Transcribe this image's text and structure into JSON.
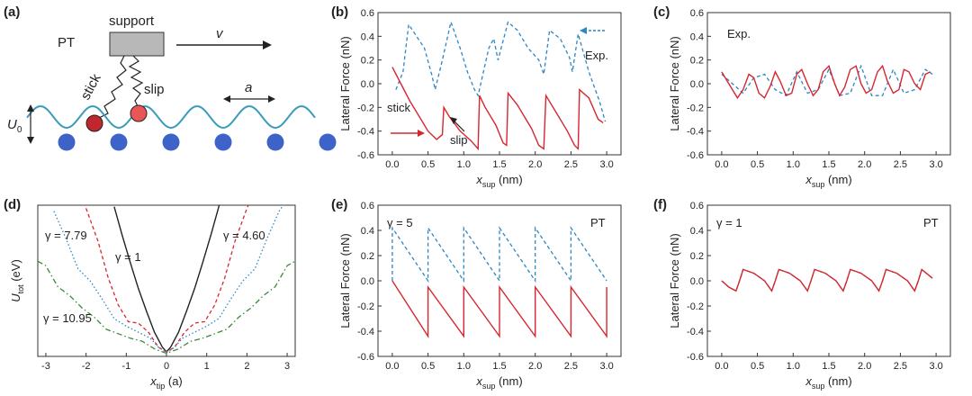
{
  "colors": {
    "exp": "#2f86c2",
    "sim": "#d7262e",
    "black": "#222222",
    "green": "#3a8a3a",
    "atom": "#3e63c8",
    "wave": "#3a9cba",
    "support": "#b8b8b8"
  },
  "panel_labels": {
    "a": "(a)",
    "b": "(b)",
    "c": "(c)",
    "d": "(d)",
    "e": "(e)",
    "f": "(f)"
  },
  "schematic": {
    "model": "PT",
    "support": "support",
    "velocity": "v",
    "stick": "stick",
    "slip": "slip",
    "lattice": "a",
    "barrier_base": "U",
    "barrier_sub": "0"
  },
  "chart_data": [
    {
      "id": "b",
      "type": "line",
      "ylabel": "Lateral Force (nN)",
      "xlabel_base": "x",
      "xlabel_sub": "sup",
      "xlabel_unit": " (nm)",
      "xlim": [
        -0.2,
        3.2
      ],
      "ylim": [
        -0.6,
        0.6
      ],
      "xticks": [
        "0.0",
        "0.5",
        "1.0",
        "1.5",
        "2.0",
        "2.5",
        "3.0"
      ],
      "yticks": [
        "-0.6",
        "-0.4",
        "-0.2",
        "0.0",
        "0.2",
        "0.4",
        "0.6"
      ],
      "annotations": {
        "exp": "Exp.",
        "stick": "stick",
        "slip": "slip"
      },
      "series": [
        {
          "style": "dashed",
          "color": "exp",
          "x": [
            0.05,
            0.15,
            0.23,
            0.45,
            0.55,
            0.6,
            0.7,
            0.82,
            0.95,
            1.05,
            1.15,
            1.2,
            1.35,
            1.42,
            1.48,
            1.62,
            1.75,
            1.9,
            2.05,
            2.12,
            2.2,
            2.35,
            2.48,
            2.52,
            2.6,
            2.75,
            2.9,
            2.98
          ],
          "y": [
            -0.05,
            0.1,
            0.5,
            0.3,
            0.08,
            -0.05,
            0.2,
            0.52,
            0.3,
            0.1,
            -0.05,
            -0.1,
            0.3,
            0.38,
            0.2,
            0.52,
            0.45,
            0.3,
            0.2,
            0.08,
            0.45,
            0.38,
            0.22,
            0.1,
            0.42,
            0.1,
            -0.15,
            -0.32
          ]
        },
        {
          "style": "solid",
          "color": "sim",
          "x": [
            0.0,
            0.12,
            0.25,
            0.38,
            0.5,
            0.62,
            0.7,
            0.72,
            0.8,
            0.95,
            1.1,
            1.2,
            1.22,
            1.3,
            1.45,
            1.55,
            1.6,
            1.62,
            1.75,
            1.95,
            2.05,
            2.12,
            2.15,
            2.3,
            2.45,
            2.55,
            2.6,
            2.62,
            2.75,
            2.88,
            2.95
          ],
          "y": [
            0.14,
            0.0,
            -0.15,
            -0.28,
            -0.4,
            -0.47,
            -0.43,
            -0.2,
            -0.28,
            -0.4,
            -0.48,
            -0.55,
            -0.1,
            -0.2,
            -0.35,
            -0.5,
            -0.52,
            -0.08,
            -0.18,
            -0.38,
            -0.52,
            -0.55,
            -0.1,
            -0.25,
            -0.4,
            -0.52,
            -0.55,
            -0.05,
            -0.12,
            -0.3,
            -0.33
          ]
        }
      ]
    },
    {
      "id": "c",
      "type": "line",
      "ylabel": "Lateral Force (nN)",
      "xlabel_base": "x",
      "xlabel_sub": "sup",
      "xlabel_unit": " (nm)",
      "xlim": [
        -0.2,
        3.2
      ],
      "ylim": [
        -0.6,
        0.6
      ],
      "xticks": [
        "0.0",
        "0.5",
        "1.0",
        "1.5",
        "2.0",
        "2.5",
        "3.0"
      ],
      "yticks": [
        "-0.6",
        "-0.4",
        "-0.2",
        "0.0",
        "0.2",
        "0.4",
        "0.6"
      ],
      "annotations": {
        "exp": "Exp."
      },
      "series": [
        {
          "style": "dashed",
          "color": "exp",
          "x": [
            0.0,
            0.15,
            0.3,
            0.45,
            0.6,
            0.75,
            0.9,
            1.05,
            1.2,
            1.35,
            1.5,
            1.65,
            1.8,
            1.95,
            2.1,
            2.25,
            2.4,
            2.55,
            2.7,
            2.85,
            2.95
          ],
          "y": [
            0.08,
            0.0,
            -0.08,
            0.05,
            0.08,
            -0.05,
            -0.1,
            0.1,
            -0.08,
            -0.05,
            0.12,
            -0.1,
            -0.08,
            0.15,
            -0.1,
            -0.1,
            0.12,
            -0.08,
            -0.05,
            0.12,
            0.08
          ]
        },
        {
          "style": "solid",
          "color": "sim",
          "x": [
            0.0,
            0.08,
            0.15,
            0.22,
            0.3,
            0.38,
            0.45,
            0.52,
            0.6,
            0.68,
            0.75,
            0.82,
            0.9,
            0.98,
            1.05,
            1.12,
            1.2,
            1.28,
            1.35,
            1.42,
            1.5,
            1.58,
            1.65,
            1.72,
            1.8,
            1.88,
            1.95,
            2.02,
            2.1,
            2.18,
            2.25,
            2.32,
            2.4,
            2.48,
            2.55,
            2.62,
            2.7,
            2.78,
            2.85,
            2.92
          ],
          "y": [
            0.1,
            0.02,
            -0.05,
            -0.12,
            -0.05,
            0.08,
            0.05,
            -0.08,
            -0.12,
            -0.02,
            0.1,
            0.02,
            -0.1,
            -0.08,
            0.08,
            0.12,
            0.0,
            -0.1,
            -0.05,
            0.1,
            0.15,
            0.0,
            -0.1,
            -0.03,
            0.12,
            0.15,
            0.0,
            -0.08,
            -0.05,
            0.1,
            0.15,
            0.02,
            -0.08,
            -0.05,
            0.12,
            0.1,
            0.0,
            -0.05,
            0.08,
            0.1
          ]
        }
      ]
    },
    {
      "id": "d",
      "type": "line",
      "ylabel_base": "U",
      "ylabel_sub": "tot",
      "ylabel_unit": " (eV)",
      "xlabel_base": "x",
      "xlabel_sub": "tip",
      "xlabel_unit": " (a)",
      "xlim": [
        -3.2,
        3.2
      ],
      "ylim": [
        0,
        10
      ],
      "xticks": [
        "-3",
        "-2",
        "-1",
        "0",
        "1",
        "2",
        "3"
      ],
      "yticks": [],
      "annotations": {
        "g1": "γ = 1",
        "g2": "γ = 4.60",
        "g3": "γ = 7.79",
        "g4": "γ = 10.95"
      },
      "series": [
        {
          "style": "solid",
          "color": "black",
          "x": [
            -1.3,
            -1.1,
            -0.9,
            -0.7,
            -0.5,
            -0.3,
            -0.1,
            0.0,
            0.1,
            0.3,
            0.5,
            0.7,
            0.9,
            1.1,
            1.3,
            1.5
          ],
          "y": [
            9.9,
            8.0,
            6.2,
            4.5,
            3.0,
            1.6,
            0.6,
            0.3,
            0.6,
            1.6,
            3.0,
            4.5,
            6.2,
            8.0,
            9.9,
            11.5
          ]
        },
        {
          "style": "dashed",
          "color": "sim",
          "x": [
            -2.0,
            -1.7,
            -1.45,
            -1.2,
            -0.95,
            -0.7,
            -0.45,
            -0.2,
            0.0,
            0.2,
            0.45,
            0.7,
            0.95,
            1.2,
            1.45,
            1.7,
            2.0,
            2.3
          ],
          "y": [
            9.8,
            7.6,
            5.2,
            3.4,
            2.3,
            2.2,
            1.6,
            0.6,
            0.3,
            0.6,
            1.6,
            2.2,
            2.3,
            3.4,
            5.2,
            7.6,
            9.8,
            11.5
          ]
        },
        {
          "style": "dotted",
          "color": "exp",
          "x": [
            -2.8,
            -2.5,
            -2.2,
            -1.9,
            -1.6,
            -1.3,
            -1.0,
            -0.7,
            -0.4,
            -0.2,
            0.0,
            0.2,
            0.4,
            0.7,
            1.0,
            1.3,
            1.6,
            1.9,
            2.2,
            2.5,
            2.8,
            3.1
          ],
          "y": [
            9.6,
            7.8,
            5.8,
            5.0,
            3.8,
            2.5,
            2.0,
            1.6,
            1.2,
            0.6,
            0.25,
            0.6,
            1.2,
            1.6,
            2.0,
            2.5,
            3.8,
            5.0,
            5.8,
            7.8,
            9.6,
            10.8
          ]
        },
        {
          "style": "dashdot",
          "color": "green",
          "x": [
            -3.2,
            -3.0,
            -2.7,
            -2.4,
            -2.1,
            -1.8,
            -1.5,
            -1.2,
            -0.9,
            -0.6,
            -0.3,
            0.0,
            0.3,
            0.6,
            0.9,
            1.2,
            1.5,
            1.8,
            2.1,
            2.4,
            2.7,
            3.0,
            3.2
          ],
          "y": [
            6.3,
            6.0,
            4.6,
            4.0,
            3.2,
            2.6,
            1.8,
            1.5,
            1.2,
            1.0,
            0.5,
            0.2,
            0.5,
            1.0,
            1.2,
            1.5,
            1.8,
            2.6,
            3.2,
            4.0,
            4.6,
            6.0,
            6.3
          ]
        }
      ]
    },
    {
      "id": "e",
      "type": "line",
      "ylabel": "Lateral Force (nN)",
      "xlabel_base": "x",
      "xlabel_sub": "sup",
      "xlabel_unit": " (nm)",
      "xlim": [
        -0.2,
        3.2
      ],
      "ylim": [
        -0.6,
        0.6
      ],
      "xticks": [
        "0.0",
        "0.5",
        "1.0",
        "1.5",
        "2.0",
        "2.5",
        "3.0"
      ],
      "yticks": [
        "-0.6",
        "-0.4",
        "-0.2",
        "0.0",
        "0.2",
        "0.4",
        "0.6"
      ],
      "annotations": {
        "gamma": "γ = 5",
        "model": "PT"
      },
      "series": [
        {
          "style": "dashed",
          "color": "exp",
          "x": [
            0.0,
            0.0,
            0.5,
            0.5,
            1.0,
            1.0,
            1.5,
            1.5,
            2.0,
            2.0,
            2.5,
            2.5,
            3.0
          ],
          "y": [
            0.0,
            0.42,
            0.0,
            0.42,
            0.0,
            0.42,
            0.0,
            0.42,
            0.0,
            0.42,
            0.0,
            0.42,
            0.0
          ]
        },
        {
          "style": "solid",
          "color": "sim",
          "x": [
            0.0,
            0.5,
            0.5,
            1.0,
            1.0,
            1.5,
            1.5,
            2.0,
            2.0,
            2.5,
            2.5,
            3.0,
            3.0
          ],
          "y": [
            0.0,
            -0.44,
            -0.05,
            -0.44,
            -0.05,
            -0.44,
            -0.05,
            -0.44,
            -0.05,
            -0.44,
            -0.05,
            -0.44,
            -0.05
          ]
        }
      ]
    },
    {
      "id": "f",
      "type": "line",
      "ylabel": "Lateral Force (nN)",
      "xlabel_base": "x",
      "xlabel_sub": "sup",
      "xlabel_unit": " (nm)",
      "xlim": [
        -0.2,
        3.2
      ],
      "ylim": [
        -0.6,
        0.6
      ],
      "xticks": [
        "0.0",
        "0.5",
        "1.0",
        "1.5",
        "2.0",
        "2.5",
        "3.0"
      ],
      "yticks": [
        "-0.6",
        "-0.4",
        "-0.2",
        "0.0",
        "0.2",
        "0.4",
        "0.6"
      ],
      "annotations": {
        "gamma": "γ = 1",
        "model": "PT"
      },
      "series": [
        {
          "style": "dashed",
          "color": "exp",
          "x": [
            0.0,
            0.1,
            0.2,
            0.25,
            0.3,
            0.45,
            0.6,
            0.7,
            0.75,
            0.8,
            0.95,
            1.1,
            1.2,
            1.25,
            1.3,
            1.45,
            1.6,
            1.7,
            1.75,
            1.8,
            1.95,
            2.1,
            2.2,
            2.25,
            2.3,
            2.45,
            2.6,
            2.7,
            2.75,
            2.8,
            2.95
          ],
          "y": [
            0.0,
            -0.05,
            -0.08,
            0.0,
            0.09,
            0.06,
            0.0,
            -0.08,
            0.0,
            0.09,
            0.06,
            0.0,
            -0.08,
            0.0,
            0.09,
            0.06,
            0.0,
            -0.08,
            0.0,
            0.09,
            0.06,
            0.0,
            -0.08,
            0.0,
            0.09,
            0.06,
            0.0,
            -0.08,
            0.0,
            0.09,
            0.02
          ]
        },
        {
          "style": "solid",
          "color": "sim",
          "x": [
            0.0,
            0.1,
            0.2,
            0.25,
            0.3,
            0.45,
            0.6,
            0.7,
            0.75,
            0.8,
            0.95,
            1.1,
            1.2,
            1.25,
            1.3,
            1.45,
            1.6,
            1.7,
            1.75,
            1.8,
            1.95,
            2.1,
            2.2,
            2.25,
            2.3,
            2.45,
            2.6,
            2.7,
            2.75,
            2.8,
            2.95
          ],
          "y": [
            0.0,
            -0.05,
            -0.08,
            0.0,
            0.09,
            0.06,
            0.0,
            -0.08,
            0.0,
            0.09,
            0.06,
            0.0,
            -0.08,
            0.0,
            0.09,
            0.06,
            0.0,
            -0.08,
            0.0,
            0.09,
            0.06,
            0.0,
            -0.08,
            0.0,
            0.09,
            0.06,
            0.0,
            -0.08,
            0.0,
            0.09,
            0.02
          ]
        }
      ]
    }
  ]
}
